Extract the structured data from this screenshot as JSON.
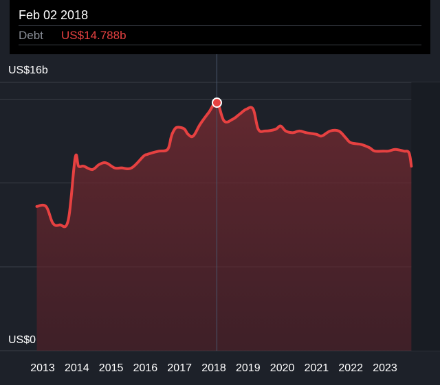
{
  "tooltip": {
    "date": "Feb 02 2018",
    "series_label": "Debt",
    "series_value": "US$14.788b"
  },
  "colors": {
    "background": "#1d2129",
    "line": "#e64141",
    "gridline": "#3a3f47",
    "crosshair": "#4a5a70"
  },
  "chart_data": {
    "type": "area",
    "title": "",
    "xlabel": "",
    "ylabel": "",
    "y_top_label": "US$16b",
    "y_bottom_label": "US$0",
    "ylim": [
      0,
      16
    ],
    "xlim": [
      2012.8,
      2024.4
    ],
    "x_tick_labels": [
      "2013",
      "2014",
      "2015",
      "2016",
      "2017",
      "2018",
      "2019",
      "2020",
      "2021",
      "2022",
      "2023"
    ],
    "grid": true,
    "highlight": {
      "x": 2018.09,
      "y": 14.788
    },
    "series": [
      {
        "x": [
          2012.83,
          2013.1,
          2013.3,
          2013.5,
          2013.75,
          2013.95,
          2014.05,
          2014.2,
          2014.45,
          2014.65,
          2014.85,
          2015.1,
          2015.3,
          2015.6,
          2015.95,
          2016.05,
          2016.2,
          2016.4,
          2016.65,
          2016.75,
          2016.8,
          2016.9,
          2017.05,
          2017.15,
          2017.25,
          2017.4,
          2017.6,
          2017.85,
          2018.09,
          2018.3,
          2018.55,
          2018.75,
          2018.95,
          2019.15,
          2019.3,
          2019.5,
          2019.8,
          2019.95,
          2020.1,
          2020.3,
          2020.5,
          2020.7,
          2021.0,
          2021.15,
          2021.4,
          2021.65,
          2021.85,
          2022.0,
          2022.3,
          2022.55,
          2022.7,
          2022.95,
          2023.1,
          2023.3,
          2023.55,
          2023.7,
          2023.77
        ],
        "values": [
          8.6,
          8.6,
          7.6,
          7.5,
          7.8,
          11.5,
          11.0,
          11.0,
          10.8,
          11.1,
          11.2,
          10.9,
          10.9,
          10.9,
          11.6,
          11.7,
          11.8,
          11.9,
          12.0,
          12.7,
          13.0,
          13.3,
          13.3,
          13.2,
          12.9,
          12.8,
          13.5,
          14.2,
          14.788,
          13.7,
          13.8,
          14.1,
          14.4,
          14.4,
          13.2,
          13.1,
          13.2,
          13.4,
          13.1,
          13.0,
          13.1,
          13.0,
          12.9,
          12.8,
          13.1,
          13.1,
          12.7,
          12.4,
          12.3,
          12.1,
          11.9,
          11.9,
          11.9,
          12.0,
          11.9,
          11.8,
          11.0
        ]
      }
    ]
  }
}
